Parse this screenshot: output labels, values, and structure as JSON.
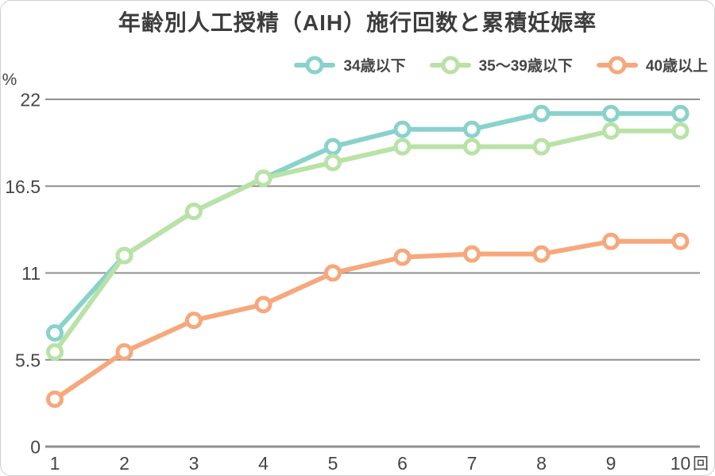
{
  "title": "年齢別人工授精（AIH）施行回数と累積妊娠率",
  "legend": {
    "items": [
      {
        "label": "34歳以下",
        "color": "#89D2CB"
      },
      {
        "label": "35～39歳以下",
        "color": "#B8E2A6"
      },
      {
        "label": "40歳以上",
        "color": "#F6A87C"
      }
    ]
  },
  "axes": {
    "y_unit": "%",
    "x_unit": "回",
    "y_tick_labels": [
      "0",
      "5.5",
      "11",
      "16.5",
      "22"
    ],
    "x_tick_labels": [
      "1",
      "2",
      "3",
      "4",
      "5",
      "6",
      "7",
      "8",
      "9",
      "10"
    ]
  },
  "colors": {
    "grid": "#8F8F8F",
    "text": "#454545",
    "background": "#FFFFFF",
    "title_text": "#3D3D3D"
  },
  "chart_data": {
    "type": "line",
    "title": "年齢別人工授精（AIH）施行回数と累積妊娠率",
    "x": [
      1,
      2,
      3,
      4,
      5,
      6,
      7,
      8,
      9,
      10
    ],
    "xlabel": "回",
    "ylabel": "%",
    "ylim": [
      0,
      22
    ],
    "yticks": [
      0,
      5.5,
      11,
      16.5,
      22
    ],
    "grid": true,
    "legend_position": "top-right",
    "marker": "open-circle",
    "series": [
      {
        "name": "34歳以下",
        "color": "#89D2CB",
        "values": [
          7.2,
          12.1,
          14.9,
          17.0,
          19.0,
          20.1,
          20.1,
          21.1,
          21.1,
          21.1
        ]
      },
      {
        "name": "35～39歳以下",
        "color": "#B8E2A6",
        "values": [
          6.0,
          12.1,
          14.9,
          17.0,
          18.0,
          19.0,
          19.0,
          19.0,
          20.0,
          20.0
        ]
      },
      {
        "name": "40歳以上",
        "color": "#F6A87C",
        "values": [
          3.0,
          6.0,
          8.0,
          9.0,
          11.0,
          12.0,
          12.2,
          12.2,
          13.0,
          13.0
        ]
      }
    ]
  }
}
